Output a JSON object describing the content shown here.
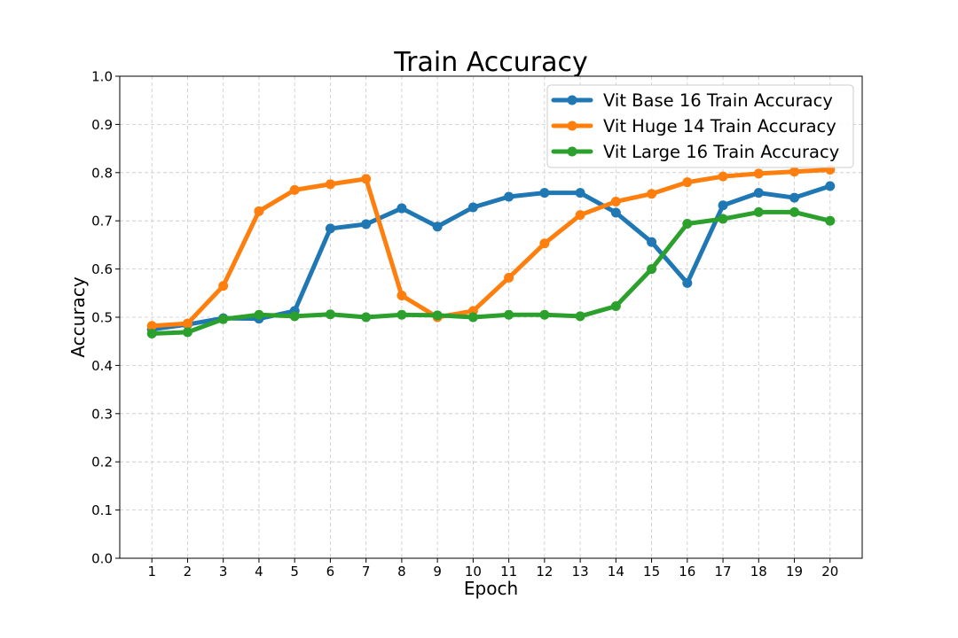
{
  "chart_data": {
    "type": "line",
    "title": "Train Accuracy",
    "xlabel": "Epoch",
    "ylabel": "Accuracy",
    "x": [
      1,
      2,
      3,
      4,
      5,
      6,
      7,
      8,
      9,
      10,
      11,
      12,
      13,
      14,
      15,
      16,
      17,
      18,
      19,
      20
    ],
    "xlim": [
      0.1,
      20.9
    ],
    "ylim": [
      0.0,
      1.0
    ],
    "yticks": [
      "0.0",
      "0.1",
      "0.2",
      "0.3",
      "0.4",
      "0.5",
      "0.6",
      "0.7",
      "0.8",
      "0.9",
      "1.0"
    ],
    "grid": true,
    "legend_position": "top-right",
    "series": [
      {
        "name": "Vit Base 16 Train Accuracy",
        "color": "#1f77b4",
        "values": [
          0.475,
          0.485,
          0.498,
          0.497,
          0.513,
          0.684,
          0.693,
          0.726,
          0.688,
          0.728,
          0.75,
          0.758,
          0.758,
          0.717,
          0.656,
          0.571,
          0.732,
          0.758,
          0.748,
          0.772
        ]
      },
      {
        "name": "Vit Huge 14 Train Accuracy",
        "color": "#ff7f0e",
        "values": [
          0.482,
          0.487,
          0.565,
          0.72,
          0.764,
          0.776,
          0.787,
          0.545,
          0.5,
          0.513,
          0.582,
          0.653,
          0.712,
          0.74,
          0.756,
          0.78,
          0.792,
          0.798,
          0.802,
          0.806
        ]
      },
      {
        "name": "Vit Large 16 Train Accuracy",
        "color": "#2ca02c",
        "values": [
          0.466,
          0.469,
          0.496,
          0.505,
          0.502,
          0.506,
          0.5,
          0.505,
          0.504,
          0.5,
          0.505,
          0.505,
          0.502,
          0.523,
          0.6,
          0.694,
          0.704,
          0.718,
          0.718,
          0.7
        ]
      }
    ]
  }
}
